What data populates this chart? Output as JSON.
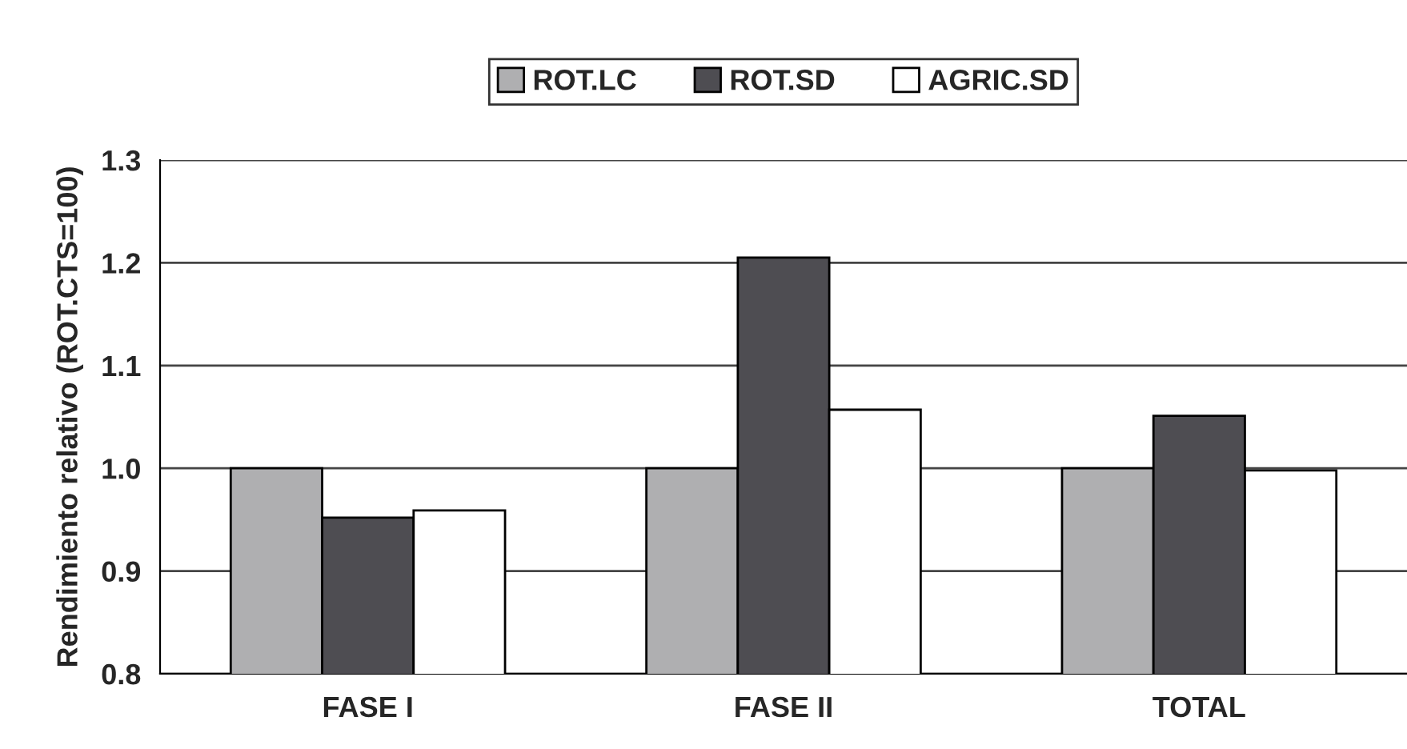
{
  "chart_data": {
    "type": "bar",
    "ylabel": "Rendimiento relativo (ROT.CTS=100)",
    "categories": [
      "FASE I",
      "FASE II",
      "TOTAL"
    ],
    "series": [
      {
        "name": "ROT.LC",
        "color": "#afafb1",
        "values": [
          1.0,
          1.0,
          1.0
        ]
      },
      {
        "name": "ROT.SD",
        "color": "#4e4d52",
        "values": [
          0.952,
          1.205,
          1.051
        ]
      },
      {
        "name": "AGRIC.SD",
        "color": "#ffffff",
        "values": [
          0.959,
          1.057,
          0.998
        ]
      }
    ],
    "ylim": [
      0.8,
      1.3
    ],
    "yticks": [
      {
        "value": 0.8,
        "label": "0.8"
      },
      {
        "value": 0.9,
        "label": "0.9"
      },
      {
        "value": 1.0,
        "label": "1.0"
      },
      {
        "value": 1.1,
        "label": "1.1"
      },
      {
        "value": 1.2,
        "label": "1.2"
      },
      {
        "value": 1.3,
        "label": "1.3"
      }
    ],
    "grid": "y",
    "legend": "top"
  }
}
